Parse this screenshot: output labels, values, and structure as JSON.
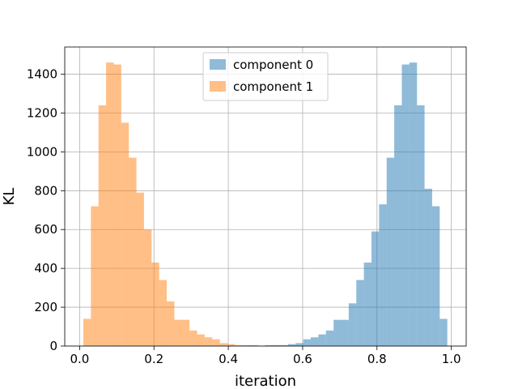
{
  "chart_data": {
    "type": "bar",
    "subtype": "overlapping-histogram",
    "title": "",
    "xlabel": "iteration",
    "ylabel": "KL",
    "xlim": [
      -0.04,
      1.04
    ],
    "ylim": [
      0,
      1540
    ],
    "xticks": [
      0.0,
      0.2,
      0.4,
      0.6,
      0.8,
      1.0
    ],
    "xtick_labels": [
      "0.0",
      "0.2",
      "0.4",
      "0.6",
      "0.8",
      "1.0"
    ],
    "yticks": [
      0,
      200,
      400,
      600,
      800,
      1000,
      1200,
      1400
    ],
    "ytick_labels": [
      "0",
      "200",
      "400",
      "600",
      "800",
      "1000",
      "1200",
      "1400"
    ],
    "grid": true,
    "legend": "upper center",
    "bin_edges": [
      0.01,
      0.0304,
      0.0508,
      0.0712,
      0.0916,
      0.112,
      0.1324,
      0.1528,
      0.1732,
      0.1936,
      0.214,
      0.2344,
      0.2548,
      0.2752,
      0.2956,
      0.316,
      0.3364,
      0.3568,
      0.3772,
      0.3976,
      0.418,
      0.4384,
      0.4588,
      0.4792,
      0.4996,
      0.52,
      0.5404,
      0.5608,
      0.5812,
      0.6016,
      0.622,
      0.6424,
      0.6628,
      0.6832,
      0.7036,
      0.724,
      0.7444,
      0.7648,
      0.7852,
      0.8056,
      0.826,
      0.8464,
      0.8668,
      0.8872,
      0.9076,
      0.928,
      0.9484,
      0.9688,
      0.9892
    ],
    "series": [
      {
        "name": "component 0",
        "color": "#1f77b4",
        "alpha": 0.5,
        "values": [
          0,
          0,
          0,
          0,
          0,
          0,
          0,
          0,
          0,
          0,
          0,
          0,
          0,
          0,
          0,
          0,
          0,
          0,
          0,
          0,
          0,
          2,
          3,
          2,
          4,
          5,
          5,
          10,
          15,
          35,
          45,
          60,
          80,
          135,
          135,
          220,
          340,
          430,
          590,
          730,
          970,
          1240,
          1450,
          1460,
          1240,
          810,
          720,
          140
        ]
      },
      {
        "name": "component 1",
        "color": "#ff7f0e",
        "alpha": 0.5,
        "values": [
          140,
          720,
          1240,
          1460,
          1450,
          1150,
          970,
          790,
          600,
          430,
          340,
          230,
          135,
          135,
          80,
          60,
          45,
          35,
          15,
          10,
          5,
          5,
          4,
          2,
          3,
          2,
          0,
          0,
          0,
          0,
          0,
          0,
          0,
          0,
          0,
          0,
          0,
          0,
          0,
          0,
          0,
          0,
          0,
          0,
          0,
          0,
          0,
          0
        ]
      }
    ]
  }
}
